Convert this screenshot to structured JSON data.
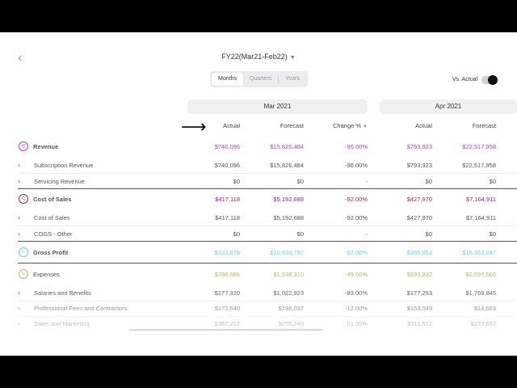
{
  "header": {
    "period_label": "FY22(Mar21-Feb22)",
    "view_tabs": [
      "Months",
      "Quarters",
      "Years"
    ],
    "active_tab": "Months",
    "vs_actual_label": "Vs. Actual"
  },
  "months": [
    "Mar 2021",
    "Apr 2021"
  ],
  "columns": {
    "actual": "Actual",
    "forecast": "Forecast",
    "change": "Change %"
  },
  "rows": [
    {
      "type": "group",
      "badge": "R",
      "label": "Revenue",
      "color": "#b43bd4",
      "values": [
        "$740,096",
        "$15,826,484",
        "-96.00%",
        "$793,923",
        "$22,517,958"
      ]
    },
    {
      "type": "sub",
      "label": "Subscription Revenue",
      "values": [
        "$740,096",
        "$15,826,484",
        "-96.00%",
        "$793,923",
        "$22,517,958"
      ]
    },
    {
      "type": "sub",
      "label": "Servicing Revenue",
      "values": [
        "$0",
        "$0",
        "-",
        "$0",
        "$0"
      ]
    },
    {
      "type": "group",
      "badge": "C",
      "label": "Cost of Sales",
      "color": "#8a2b6d",
      "values": [
        "$417,118",
        "$5,192,688",
        "-92.00%",
        "$427,970",
        "$7,164,911"
      ]
    },
    {
      "type": "sub",
      "label": "Cost of Sales",
      "values": [
        "$417,118",
        "$5,192,688",
        "-92.00%",
        "$427,970",
        "$7,164,911"
      ]
    },
    {
      "type": "sub",
      "label": "COGS - Other",
      "values": [
        "$0",
        "$0",
        "-",
        "$0",
        "$0"
      ]
    },
    {
      "type": "group",
      "badge": "G",
      "label": "Gross Profit",
      "color": "#62d3e0",
      "values": [
        "$322,978",
        "$10,633,797",
        "-97.00%",
        "$365,953",
        "$15,353,047"
      ]
    },
    {
      "type": "group",
      "badge": "E",
      "label": "Expenses",
      "color": "#c9b35c",
      "values": [
        "$786,686",
        "$1,538,310",
        "-49.00%",
        "$693,832",
        "$2,097,566"
      ]
    },
    {
      "type": "sub",
      "label": "Salaries and Benefits",
      "values": [
        "$177,320",
        "$1,022,923",
        "-83.00%",
        "$177,253",
        "$1,769,845"
      ]
    },
    {
      "type": "sub",
      "label": "Professional Fees and Contractors",
      "values": [
        "$172,540",
        "$196,037",
        "-12.00%",
        "$163,049",
        "$14,663"
      ]
    },
    {
      "type": "sub",
      "label": "Sales and Marketing",
      "values": [
        "$387,212",
        "$255,249",
        "51.00%",
        "$311,512",
        "$272,693"
      ]
    }
  ]
}
